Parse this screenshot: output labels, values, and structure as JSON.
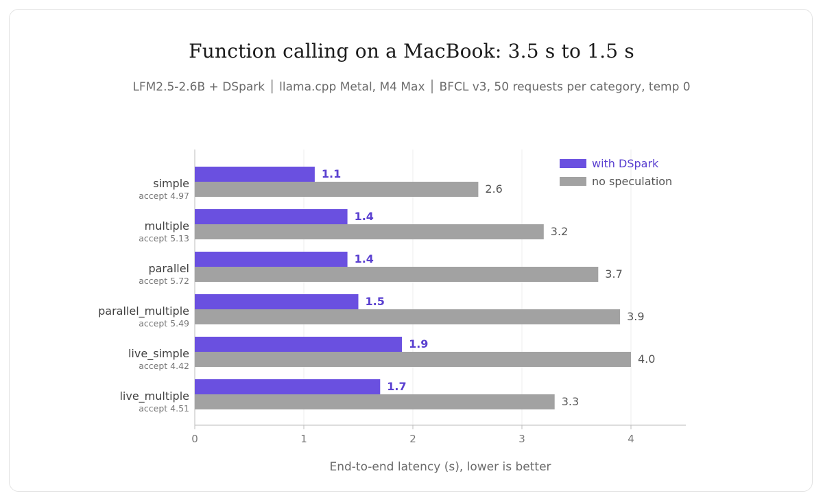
{
  "title": "Function calling on a MacBook: 3.5 s to 1.5 s",
  "subtitle": "LFM2.5-2.6B + DSpark │ llama.cpp Metal, M4 Max │ BFCL v3, 50 requests per category, temp 0",
  "colors": {
    "accent": "#6a50e0",
    "baseline": "#a2a2a2",
    "accent_label": "#5a40d0",
    "grid": "#ececec",
    "axis": "#bbbbbb"
  },
  "chart_data": {
    "type": "bar",
    "orientation": "horizontal",
    "xlabel": "End-to-end latency (s), lower is better",
    "xlim": [
      0,
      4.5
    ],
    "xticks": [
      "0",
      "1",
      "2",
      "3",
      "4"
    ],
    "grid": true,
    "legend_position": "top-right",
    "categories": [
      "simple",
      "multiple",
      "parallel",
      "parallel_multiple",
      "live_simple",
      "live_multiple"
    ],
    "sublabels": [
      "accept 4.97",
      "accept 5.13",
      "accept 5.72",
      "accept 5.49",
      "accept 4.42",
      "accept 4.51"
    ],
    "series": [
      {
        "name": "with DSpark",
        "values": [
          1.1,
          1.4,
          1.4,
          1.5,
          1.9,
          1.7
        ],
        "labels": [
          "1.1",
          "1.4",
          "1.4",
          "1.5",
          "1.9",
          "1.7"
        ]
      },
      {
        "name": "no speculation",
        "values": [
          2.6,
          3.2,
          3.7,
          3.9,
          4.0,
          3.3
        ],
        "labels": [
          "2.6",
          "3.2",
          "3.7",
          "3.9",
          "4.0",
          "3.3"
        ]
      }
    ]
  }
}
